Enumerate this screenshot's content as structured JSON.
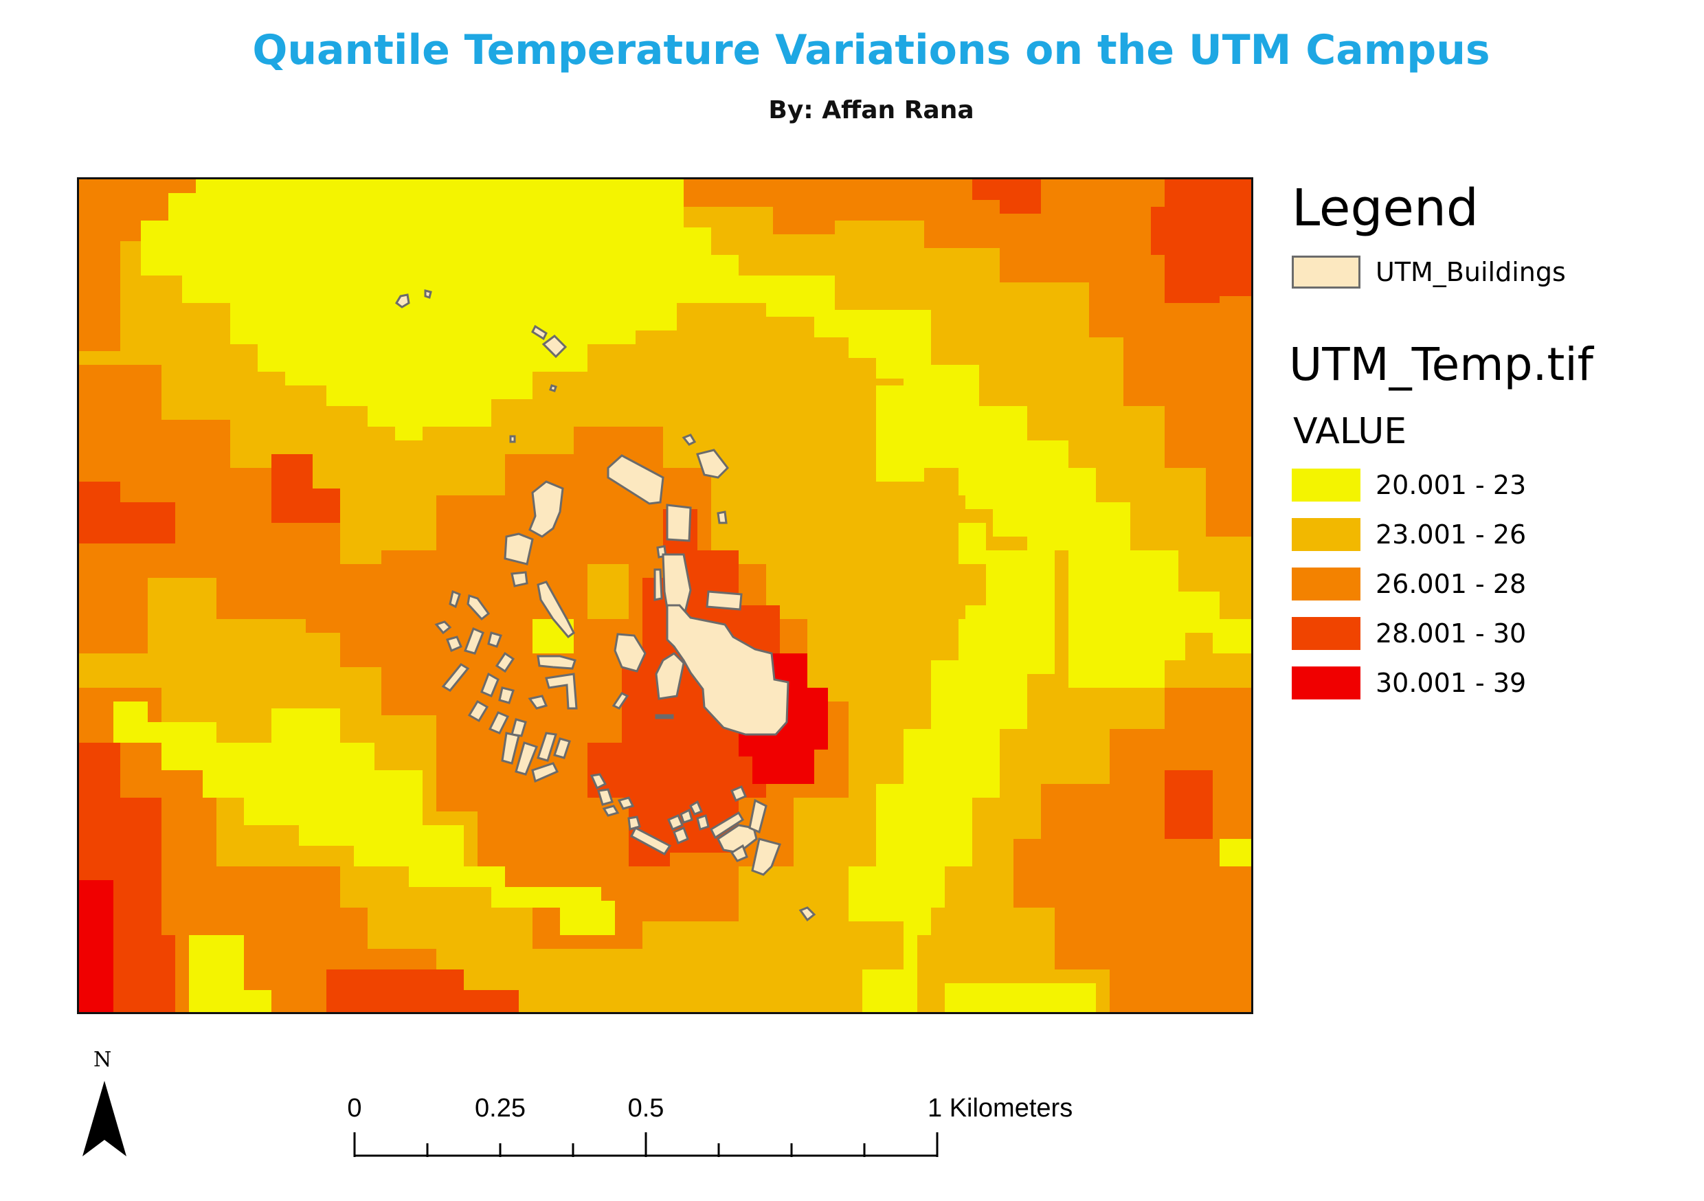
{
  "title": "Quantile Temperature Variations on the UTM Campus",
  "subtitle": "By: Affan Rana",
  "legend": {
    "title": "Legend",
    "buildings_label": "UTM_Buildings",
    "buildings_color": "#fce8c0",
    "raster_title": "UTM_Temp.tif",
    "field_title": "VALUE",
    "classes": [
      {
        "label": "20.001 - 23",
        "color": "#f4f400"
      },
      {
        "label": "23.001 - 26",
        "color": "#f2b800"
      },
      {
        "label": "26.001 - 28",
        "color": "#f38200"
      },
      {
        "label": "28.001 - 30",
        "color": "#f04400"
      },
      {
        "label": "30.001 - 39",
        "color": "#f00000"
      }
    ]
  },
  "north_arrow": {
    "letter": "N"
  },
  "scalebar": {
    "labels": [
      "0",
      "0.25",
      "0.5",
      "1 Kilometers"
    ]
  }
}
